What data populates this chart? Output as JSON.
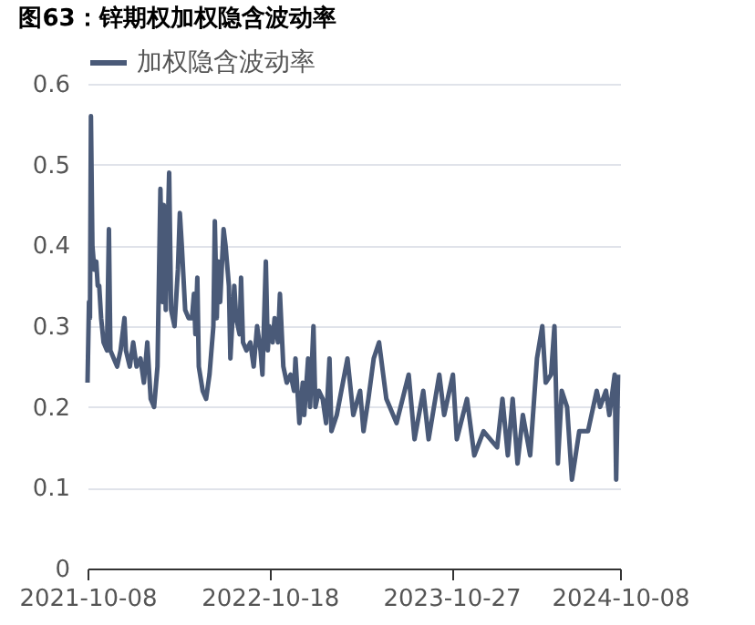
{
  "chart_data": {
    "type": "line",
    "title": "图63：锌期权加权隐含波动率",
    "x": [
      "2021-10-08",
      "2021-10-11",
      "2021-10-13",
      "2021-10-15",
      "2021-10-18",
      "2021-10-22",
      "2021-10-26",
      "2021-10-29",
      "2021-11-01",
      "2021-11-05",
      "2021-11-10",
      "2021-11-17",
      "2021-11-21",
      "2021-11-24",
      "2021-12-01",
      "2021-12-08",
      "2021-12-15",
      "2021-12-23",
      "2021-12-26",
      "2022-01-03",
      "2022-01-10",
      "2022-01-17",
      "2022-01-25",
      "2022-02-01",
      "2022-02-08",
      "2022-02-15",
      "2022-02-22",
      "2022-03-01",
      "2022-03-07",
      "2022-03-11",
      "2022-03-14",
      "2022-03-18",
      "2022-03-25",
      "2022-03-29",
      "2022-04-05",
      "2022-04-12",
      "2022-04-16",
      "2022-04-20",
      "2022-04-27",
      "2022-05-04",
      "2022-05-11",
      "2022-05-15",
      "2022-05-18",
      "2022-05-22",
      "2022-05-25",
      "2022-06-02",
      "2022-06-09",
      "2022-06-16",
      "2022-06-24",
      "2022-06-27",
      "2022-07-01",
      "2022-07-04",
      "2022-07-08",
      "2022-07-15",
      "2022-07-19",
      "2022-07-26",
      "2022-07-29",
      "2022-08-06",
      "2022-08-10",
      "2022-08-17",
      "2022-08-20",
      "2022-08-24",
      "2022-08-31",
      "2022-09-08",
      "2022-09-15",
      "2022-09-22",
      "2022-09-29",
      "2022-10-03",
      "2022-10-10",
      "2022-10-14",
      "2022-10-17",
      "2022-10-24",
      "2022-10-28",
      "2022-11-04",
      "2022-11-08",
      "2022-11-15",
      "2022-11-22",
      "2022-11-30",
      "2022-12-07",
      "2022-12-10",
      "2022-12-18",
      "2022-12-25",
      "2022-12-28",
      "2023-01-05",
      "2023-01-09",
      "2023-01-16",
      "2023-01-20",
      "2023-01-27",
      "2023-02-04",
      "2023-02-11",
      "2023-02-18",
      "2023-02-22",
      "2023-03-05",
      "2023-03-27",
      "2023-04-08",
      "2023-04-22",
      "2023-04-29",
      "2023-05-09",
      "2023-05-20",
      "2023-05-31",
      "2023-06-15",
      "2023-07-06",
      "2023-07-31",
      "2023-08-12",
      "2023-08-30",
      "2023-09-10",
      "2023-10-02",
      "2023-10-12",
      "2023-10-30",
      "2023-11-07",
      "2023-11-28",
      "2023-12-13",
      "2024-01-01",
      "2024-01-29",
      "2024-02-09",
      "2024-02-20",
      "2024-03-01",
      "2024-03-11",
      "2024-03-22",
      "2024-04-06",
      "2024-04-20",
      "2024-05-01",
      "2024-05-08",
      "2024-05-19",
      "2024-05-26",
      "2024-06-02",
      "2024-06-10",
      "2024-06-21",
      "2024-07-01",
      "2024-07-16",
      "2024-08-03",
      "2024-08-21",
      "2024-08-28",
      "2024-09-09",
      "2024-09-16",
      "2024-09-27",
      "2024-09-30",
      "2024-10-04"
    ],
    "series": [
      {
        "name": "加权隐含波动率",
        "color": "#4a5a78",
        "values": [
          0.23,
          0.33,
          0.31,
          0.56,
          0.4,
          0.37,
          0.38,
          0.35,
          0.35,
          0.31,
          0.28,
          0.27,
          0.42,
          0.27,
          0.26,
          0.25,
          0.27,
          0.31,
          0.27,
          0.25,
          0.28,
          0.25,
          0.26,
          0.23,
          0.28,
          0.21,
          0.2,
          0.25,
          0.47,
          0.33,
          0.45,
          0.32,
          0.49,
          0.32,
          0.3,
          0.37,
          0.44,
          0.4,
          0.32,
          0.31,
          0.31,
          0.34,
          0.29,
          0.36,
          0.25,
          0.22,
          0.21,
          0.24,
          0.3,
          0.43,
          0.31,
          0.38,
          0.33,
          0.42,
          0.4,
          0.35,
          0.26,
          0.35,
          0.31,
          0.29,
          0.36,
          0.28,
          0.27,
          0.28,
          0.25,
          0.3,
          0.27,
          0.24,
          0.38,
          0.27,
          0.3,
          0.28,
          0.31,
          0.28,
          0.34,
          0.25,
          0.23,
          0.24,
          0.22,
          0.26,
          0.18,
          0.23,
          0.19,
          0.26,
          0.2,
          0.3,
          0.2,
          0.22,
          0.21,
          0.18,
          0.26,
          0.17,
          0.19,
          0.26,
          0.19,
          0.22,
          0.17,
          0.21,
          0.26,
          0.28,
          0.21,
          0.18,
          0.24,
          0.16,
          0.22,
          0.16,
          0.24,
          0.19,
          0.24,
          0.16,
          0.21,
          0.14,
          0.17,
          0.15,
          0.21,
          0.14,
          0.21,
          0.13,
          0.19,
          0.14,
          0.26,
          0.3,
          0.23,
          0.24,
          0.3,
          0.13,
          0.22,
          0.2,
          0.11,
          0.17,
          0.17,
          0.22,
          0.2,
          0.22,
          0.19,
          0.24,
          0.11,
          0.24
        ]
      }
    ],
    "xlim": [
      "2021-10-08",
      "2024-10-08"
    ],
    "xticks": [
      "2021-10-08",
      "2022-10-18",
      "2023-10-27",
      "2024-10-08"
    ],
    "ylim": [
      0,
      0.6
    ],
    "yticks": [
      0,
      0.1,
      0.2,
      0.3,
      0.4,
      0.5,
      0.6
    ],
    "grid": "y",
    "legend": "top left",
    "marker": "none",
    "line_style": "solid"
  }
}
